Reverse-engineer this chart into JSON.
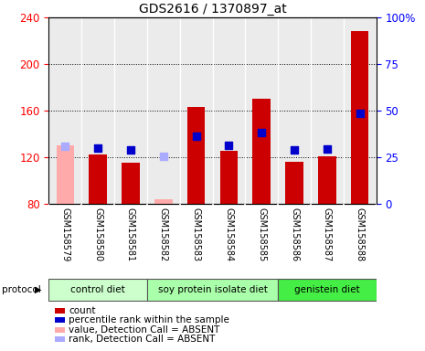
{
  "title": "GDS2616 / 1370897_at",
  "samples": [
    "GSM158579",
    "GSM158580",
    "GSM158581",
    "GSM158582",
    "GSM158583",
    "GSM158584",
    "GSM158585",
    "GSM158586",
    "GSM158587",
    "GSM158588"
  ],
  "count_values": [
    null,
    122,
    115,
    null,
    163,
    125,
    170,
    116,
    121,
    228
  ],
  "count_absent": [
    130,
    null,
    null,
    84,
    null,
    null,
    null,
    null,
    null,
    null
  ],
  "rank_values": [
    null,
    128,
    126,
    null,
    138,
    130,
    141,
    126,
    127,
    158
  ],
  "rank_absent": [
    129,
    null,
    null,
    121,
    null,
    null,
    null,
    null,
    null,
    null
  ],
  "ylim_left": [
    80,
    240
  ],
  "ylim_right": [
    0,
    100
  ],
  "left_ticks": [
    80,
    120,
    160,
    200,
    240
  ],
  "right_ticks": [
    0,
    25,
    50,
    75,
    100
  ],
  "right_tick_labels": [
    "0",
    "25",
    "50",
    "75",
    "100%"
  ],
  "bar_color_present": "#cc0000",
  "bar_color_absent": "#ffaaaa",
  "rank_color_present": "#0000cc",
  "rank_color_absent": "#aaaaff",
  "bar_width": 0.55,
  "rank_marker_size": 30,
  "bg_plot": "#ebebeb",
  "bg_xtick": "#d0d0d0",
  "control_diet_color": "#ccffcc",
  "soy_diet_color": "#aaffaa",
  "genistein_diet_color": "#44ee44",
  "groups": [
    {
      "label": "control diet",
      "start": 0,
      "end": 2,
      "color": "#ccffcc"
    },
    {
      "label": "soy protein isolate diet",
      "start": 3,
      "end": 6,
      "color": "#aaffaa"
    },
    {
      "label": "genistein diet",
      "start": 7,
      "end": 9,
      "color": "#44ee44"
    }
  ]
}
